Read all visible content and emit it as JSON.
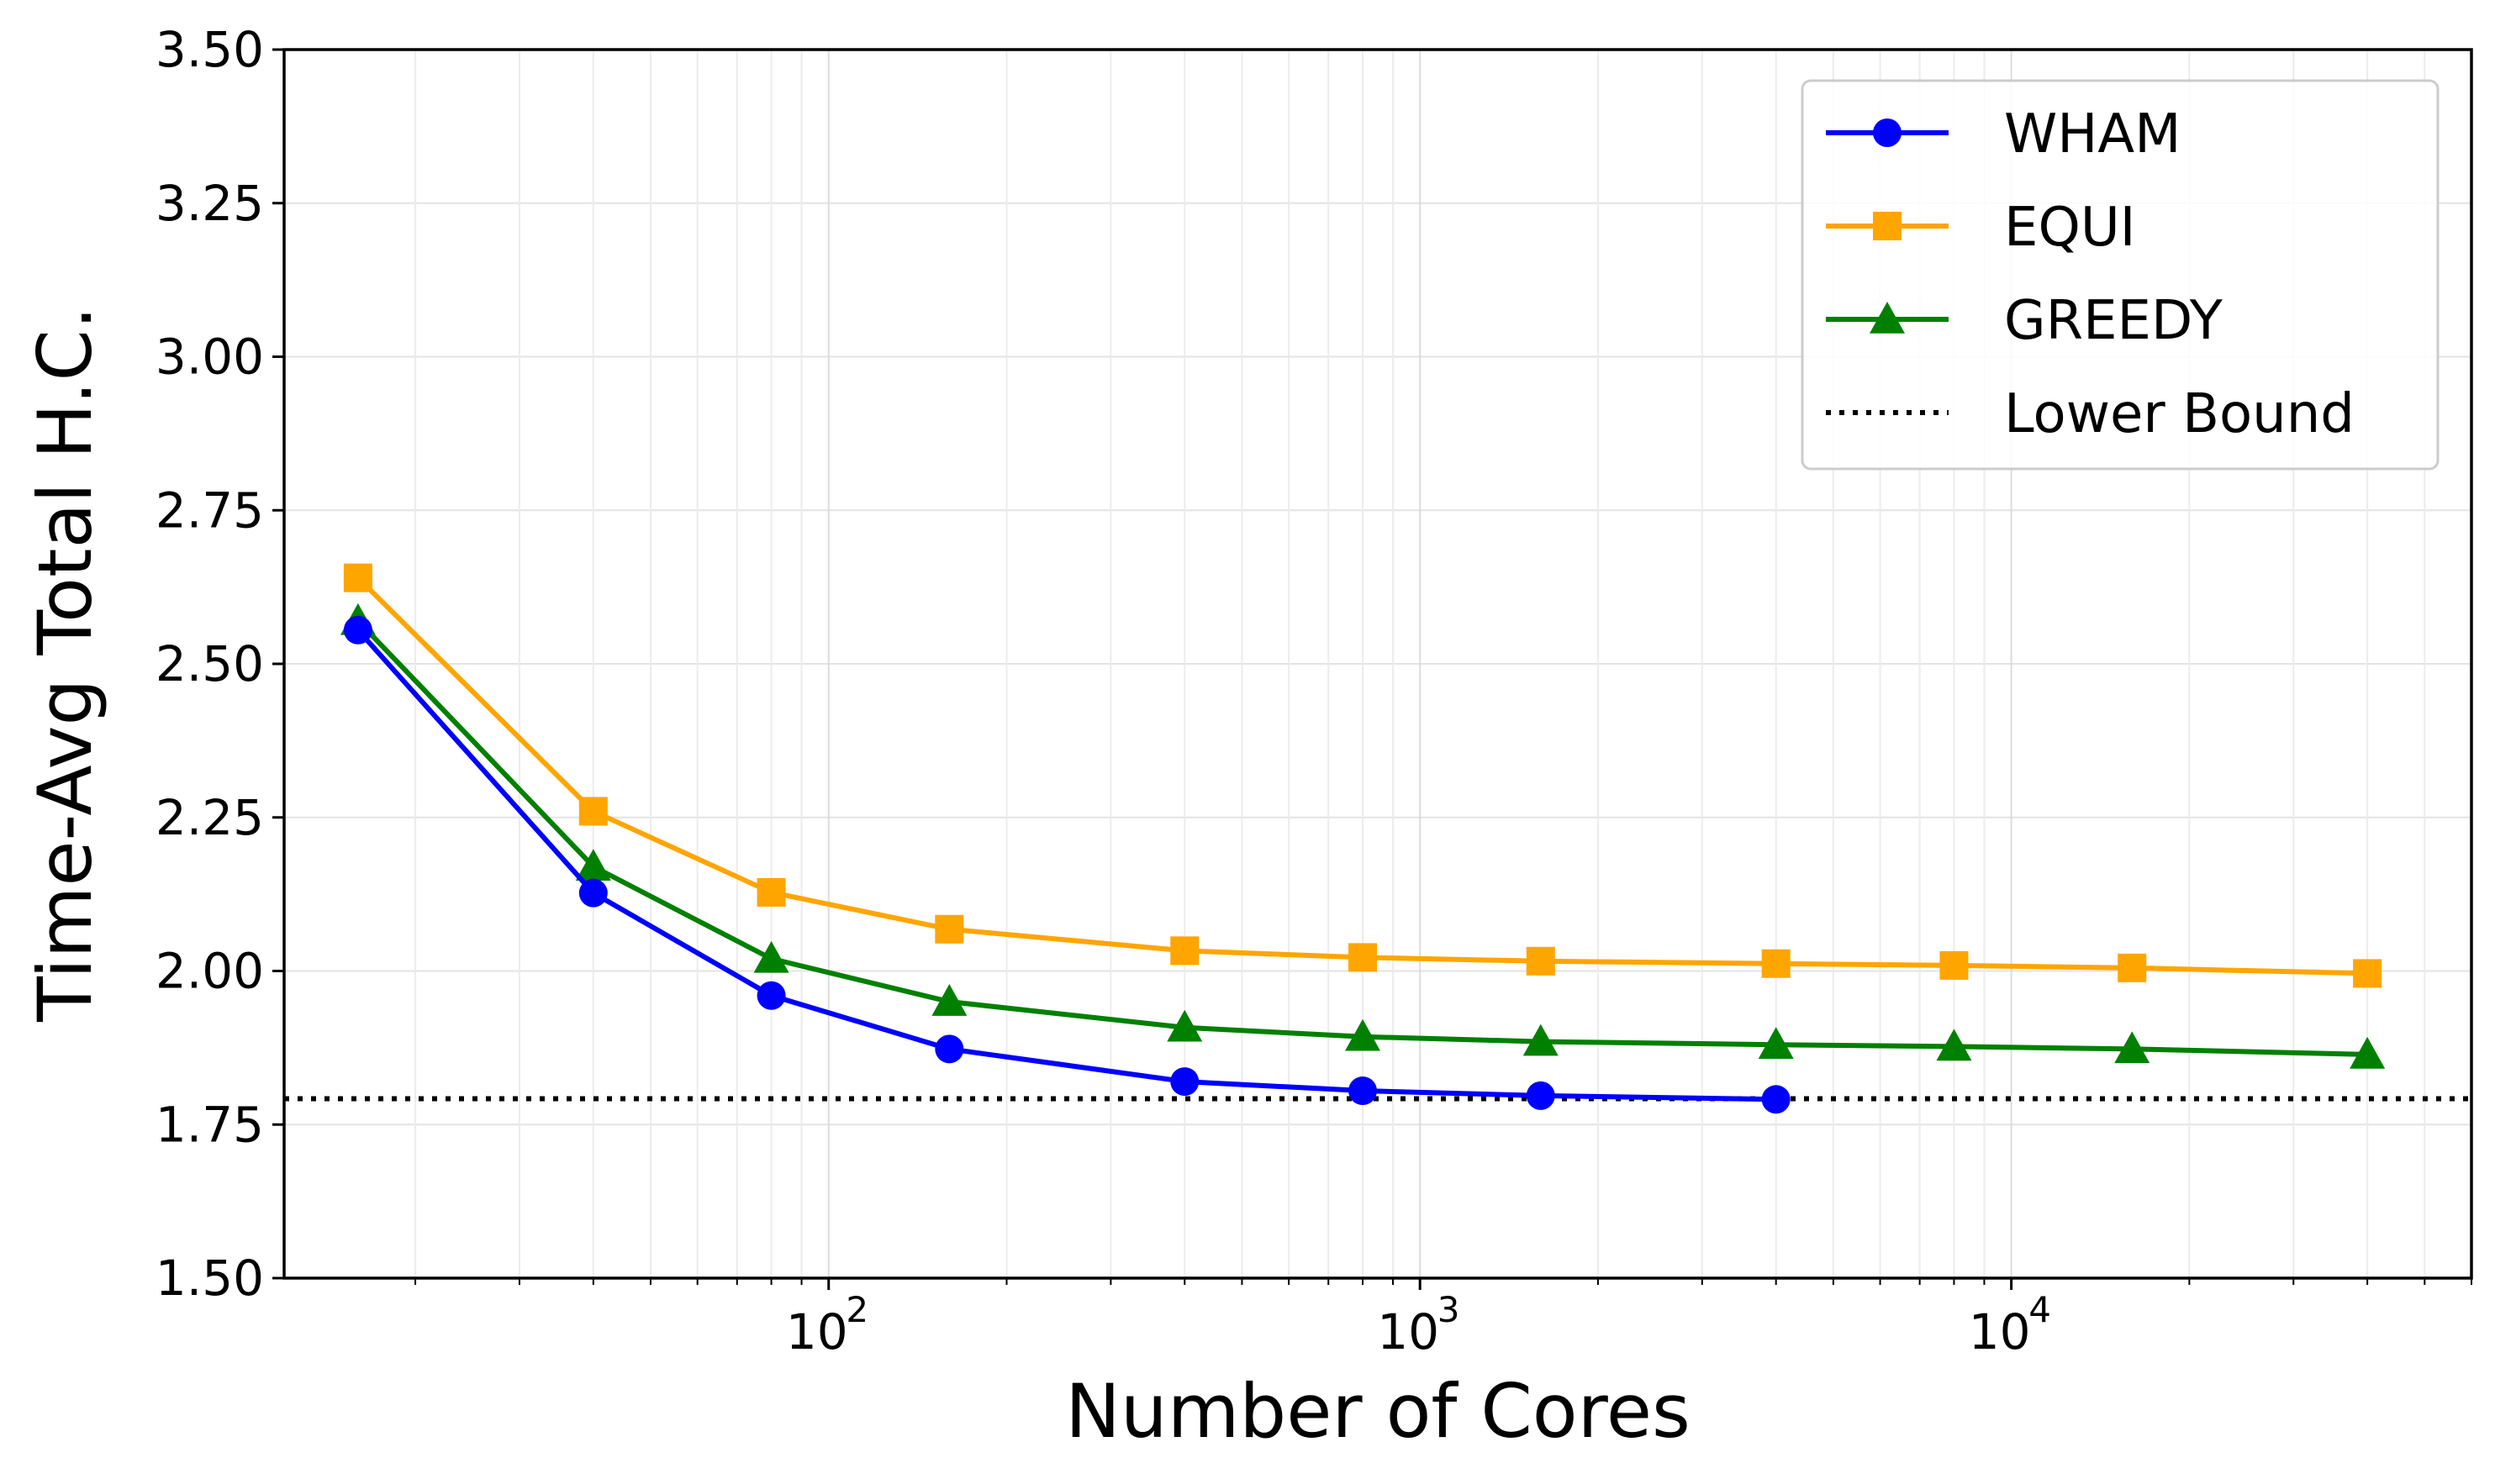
{
  "chart_data": {
    "type": "line",
    "title": "",
    "xlabel": "Number of Cores",
    "ylabel": "Time-Avg Total H.C.",
    "xscale": "log",
    "xlim": [
      12,
      60000
    ],
    "ylim": [
      1.5,
      3.5
    ],
    "grid": true,
    "legend_position": "top-right",
    "yticks": [
      {
        "value": 1.5,
        "label": "1.50"
      },
      {
        "value": 1.75,
        "label": "1.75"
      },
      {
        "value": 2.0,
        "label": "2.00"
      },
      {
        "value": 2.25,
        "label": "2.25"
      },
      {
        "value": 2.5,
        "label": "2.50"
      },
      {
        "value": 2.75,
        "label": "2.75"
      },
      {
        "value": 3.0,
        "label": "3.00"
      },
      {
        "value": 3.25,
        "label": "3.25"
      },
      {
        "value": 3.5,
        "label": "3.50"
      }
    ],
    "xticks": [
      {
        "value": 100,
        "base": "10",
        "exp": "2"
      },
      {
        "value": 1000,
        "base": "10",
        "exp": "3"
      },
      {
        "value": 10000,
        "base": "10",
        "exp": "4"
      }
    ],
    "series": [
      {
        "name": "WHAM",
        "color": "#0000ff",
        "marker": "circle",
        "x": [
          16,
          40,
          80,
          160,
          400,
          800,
          1600,
          4000
        ],
        "y": [
          2.555,
          2.127,
          1.96,
          1.873,
          1.82,
          1.805,
          1.797,
          1.791
        ]
      },
      {
        "name": "EQUI",
        "color": "#ffa500",
        "marker": "square",
        "x": [
          16,
          40,
          80,
          160,
          400,
          800,
          1600,
          4000,
          8000,
          16000,
          40000
        ],
        "y": [
          2.64,
          2.26,
          2.128,
          2.068,
          2.033,
          2.022,
          2.016,
          2.012,
          2.009,
          2.005,
          1.996
        ]
      },
      {
        "name": "GREEDY",
        "color": "#008000",
        "marker": "triangle",
        "x": [
          16,
          40,
          80,
          160,
          400,
          800,
          1600,
          4000,
          8000,
          16000,
          40000
        ],
        "y": [
          2.57,
          2.17,
          2.02,
          1.95,
          1.908,
          1.893,
          1.885,
          1.88,
          1.877,
          1.873,
          1.864
        ]
      }
    ],
    "reference_lines": [
      {
        "name": "Lower Bound",
        "color": "#000000",
        "style": "dotted",
        "y": 1.792
      }
    ]
  }
}
